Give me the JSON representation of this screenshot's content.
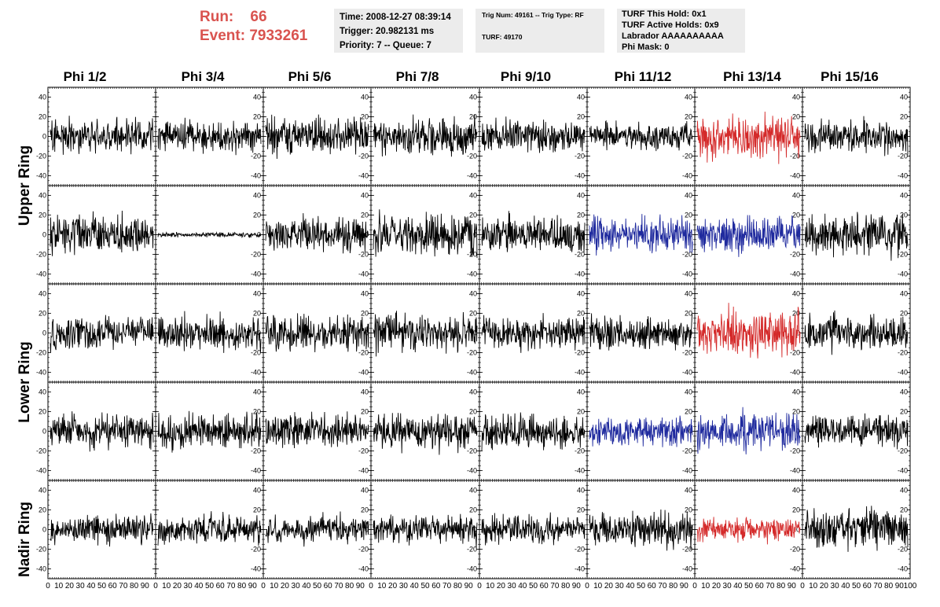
{
  "header": {
    "run_label": "Run:",
    "run_value": "66",
    "event_label": "Event:",
    "event_value": "7933261"
  },
  "info_time": {
    "line1": "Time: 2008-12-27 08:39:14",
    "line2": "Trigger: 20.982131 ms",
    "line3": "Priority: 7 -- Queue: 7"
  },
  "info_trig": {
    "line1": "Trig Num: 49161 -- Trig Type: RF",
    "line2": "TURF: 49170"
  },
  "info_turf": {
    "line1": "TURF This Hold: 0x1",
    "line2": "TURF Active Holds: 0x9",
    "line3": "Labrador AAAAAAAAAA",
    "line4": "Phi Mask: 0"
  },
  "colors": {
    "run_text": "#d9534f",
    "info_box": "#ececec",
    "trace_default": "#000000",
    "trace_red": "#d42a2a",
    "trace_blue": "#1f2a9e"
  },
  "chart_data": {
    "type": "line",
    "column_labels": [
      "Phi 1/2",
      "Phi 3/4",
      "Phi 5/6",
      "Phi 7/8",
      "Phi 9/10",
      "Phi 11/12",
      "Phi 13/14",
      "Phi 15/16"
    ],
    "ring_labels": [
      "Upper Ring",
      "Lower Ring",
      "Nadir Ring"
    ],
    "ylim": [
      -50,
      50
    ],
    "y_ticks": [
      -40,
      -20,
      0,
      20,
      40
    ],
    "xlim": [
      0,
      100
    ],
    "x_tick_labels": [
      "0",
      "10",
      "20",
      "30",
      "40",
      "50",
      "60",
      "70",
      "80",
      "90",
      "100"
    ],
    "n_samples": 256,
    "rows": 5,
    "traces": [
      {
        "row": 0,
        "col": 0,
        "color": "black",
        "amplitude": 14
      },
      {
        "row": 0,
        "col": 1,
        "color": "black",
        "amplitude": 13
      },
      {
        "row": 0,
        "col": 2,
        "color": "black",
        "amplitude": 14
      },
      {
        "row": 0,
        "col": 3,
        "color": "black",
        "amplitude": 14
      },
      {
        "row": 0,
        "col": 4,
        "color": "black",
        "amplitude": 13
      },
      {
        "row": 0,
        "col": 5,
        "color": "black",
        "amplitude": 11
      },
      {
        "row": 0,
        "col": 6,
        "color": "red",
        "amplitude": 18
      },
      {
        "row": 0,
        "col": 7,
        "color": "black",
        "amplitude": 13
      },
      {
        "row": 1,
        "col": 0,
        "color": "black",
        "amplitude": 16
      },
      {
        "row": 1,
        "col": 1,
        "color": "black",
        "amplitude": 2
      },
      {
        "row": 1,
        "col": 2,
        "color": "black",
        "amplitude": 14
      },
      {
        "row": 1,
        "col": 3,
        "color": "black",
        "amplitude": 17
      },
      {
        "row": 1,
        "col": 4,
        "color": "black",
        "amplitude": 14
      },
      {
        "row": 1,
        "col": 5,
        "color": "blue",
        "amplitude": 15
      },
      {
        "row": 1,
        "col": 6,
        "color": "blue",
        "amplitude": 14
      },
      {
        "row": 1,
        "col": 7,
        "color": "black",
        "amplitude": 16
      },
      {
        "row": 2,
        "col": 0,
        "color": "black",
        "amplitude": 13
      },
      {
        "row": 2,
        "col": 1,
        "color": "black",
        "amplitude": 14
      },
      {
        "row": 2,
        "col": 2,
        "color": "black",
        "amplitude": 15
      },
      {
        "row": 2,
        "col": 3,
        "color": "black",
        "amplitude": 15
      },
      {
        "row": 2,
        "col": 4,
        "color": "black",
        "amplitude": 13
      },
      {
        "row": 2,
        "col": 5,
        "color": "black",
        "amplitude": 13
      },
      {
        "row": 2,
        "col": 6,
        "color": "red",
        "amplitude": 19
      },
      {
        "row": 2,
        "col": 7,
        "color": "black",
        "amplitude": 14
      },
      {
        "row": 3,
        "col": 0,
        "color": "black",
        "amplitude": 14
      },
      {
        "row": 3,
        "col": 1,
        "color": "black",
        "amplitude": 14
      },
      {
        "row": 3,
        "col": 2,
        "color": "black",
        "amplitude": 14
      },
      {
        "row": 3,
        "col": 3,
        "color": "black",
        "amplitude": 14
      },
      {
        "row": 3,
        "col": 4,
        "color": "black",
        "amplitude": 14
      },
      {
        "row": 3,
        "col": 5,
        "color": "blue",
        "amplitude": 12
      },
      {
        "row": 3,
        "col": 6,
        "color": "blue",
        "amplitude": 15
      },
      {
        "row": 3,
        "col": 7,
        "color": "black",
        "amplitude": 14
      },
      {
        "row": 4,
        "col": 0,
        "color": "black",
        "amplitude": 12
      },
      {
        "row": 4,
        "col": 1,
        "color": "black",
        "amplitude": 12
      },
      {
        "row": 4,
        "col": 2,
        "color": "black",
        "amplitude": 11
      },
      {
        "row": 4,
        "col": 3,
        "color": "black",
        "amplitude": 11
      },
      {
        "row": 4,
        "col": 4,
        "color": "black",
        "amplitude": 11
      },
      {
        "row": 4,
        "col": 5,
        "color": "black",
        "amplitude": 14
      },
      {
        "row": 4,
        "col": 6,
        "color": "red",
        "amplitude": 10
      },
      {
        "row": 4,
        "col": 7,
        "color": "black",
        "amplitude": 16
      }
    ]
  }
}
